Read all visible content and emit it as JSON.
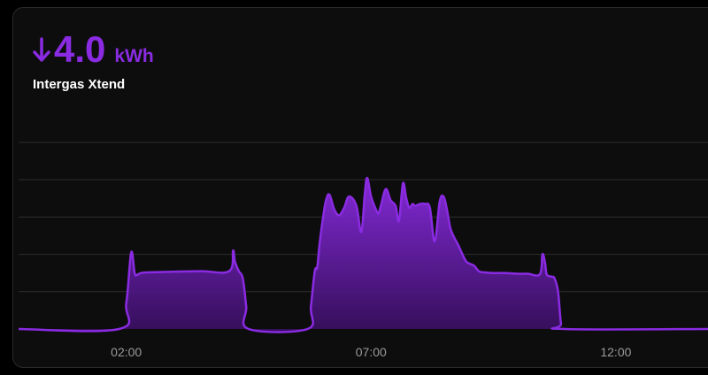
{
  "card": {
    "direction_icon": "arrow-down-icon",
    "value": "4.0",
    "unit": "kWh",
    "entity_name": "Intergas Xtend",
    "accent_color": "#8a2be2"
  },
  "chart_data": {
    "type": "area",
    "title": "",
    "xlabel": "",
    "ylabel": "",
    "x_unit": "hours",
    "x_range": [
      -0.2,
      13.9
    ],
    "y_range": [
      0,
      5
    ],
    "grid": true,
    "grid_lines_y": [
      1,
      2,
      3,
      4,
      5
    ],
    "ticks": [
      {
        "label": "02:00",
        "x": 2
      },
      {
        "label": "07:00",
        "x": 7
      },
      {
        "label": "12:00",
        "x": 12
      }
    ],
    "series": [
      {
        "color": "#8a2be2",
        "x": [
          -0.2,
          1.85,
          2.0,
          2.1,
          2.17,
          2.22,
          2.3,
          2.5,
          3.5,
          4.1,
          4.18,
          4.22,
          4.3,
          4.38,
          4.45,
          4.5,
          5.7,
          5.77,
          5.85,
          5.9,
          5.95,
          6.02,
          6.08,
          6.15,
          6.25,
          6.35,
          6.45,
          6.55,
          6.7,
          6.8,
          6.87,
          6.92,
          7.0,
          7.1,
          7.15,
          7.2,
          7.3,
          7.4,
          7.5,
          7.57,
          7.65,
          7.72,
          7.78,
          7.85,
          7.9,
          8.0,
          8.1,
          8.2,
          8.3,
          8.4,
          8.48,
          8.55,
          8.62,
          8.7,
          8.78,
          8.85,
          8.95,
          9.1,
          9.2,
          9.3,
          9.5,
          9.75,
          10.0,
          10.2,
          10.45,
          10.5,
          10.55,
          10.58,
          10.62,
          10.7,
          10.75,
          10.82,
          10.88,
          10.95,
          13.9
        ],
        "y": [
          0,
          0,
          0.7,
          2.05,
          1.5,
          1.45,
          1.5,
          1.52,
          1.55,
          1.55,
          2.1,
          1.8,
          1.55,
          1.35,
          0.6,
          0,
          0,
          0.6,
          1.55,
          1.65,
          2.3,
          3.0,
          3.45,
          3.6,
          3.2,
          3.05,
          3.25,
          3.55,
          3.3,
          2.6,
          3.6,
          4.05,
          3.55,
          3.2,
          3.1,
          3.3,
          3.75,
          3.45,
          3.3,
          2.9,
          3.9,
          3.5,
          3.25,
          3.35,
          3.3,
          3.35,
          3.35,
          3.25,
          2.35,
          3.4,
          3.55,
          3.2,
          2.7,
          2.45,
          2.25,
          2.05,
          1.8,
          1.7,
          1.55,
          1.52,
          1.5,
          1.5,
          1.48,
          1.48,
          1.47,
          2.0,
          1.8,
          1.5,
          1.42,
          1.4,
          1.35,
          1.0,
          0.15,
          0,
          0
        ]
      }
    ]
  }
}
